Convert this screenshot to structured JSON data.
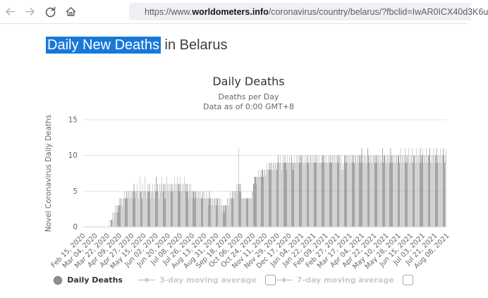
{
  "browser": {
    "url_prefix": "https://www.",
    "url_domain": "worldometers.info",
    "url_path": "/coronavirus/country/belarus/?fbclid=IwAR0ICX40d3K6u",
    "icons": {
      "back": "arrow-left",
      "forward": "arrow-right",
      "reload": "refresh-circle-arrow",
      "home": "house",
      "tracking_protection": "shield",
      "connection_security": "lock"
    }
  },
  "page": {
    "heading": {
      "highlighted": "Daily New Deaths",
      "rest": " in Belarus",
      "highlight_color": "#1778d9",
      "text_color": "#3d3d3d"
    }
  },
  "chart_data": {
    "type": "bar",
    "title": "Daily Deaths",
    "subtitle1": "Deaths per Day",
    "subtitle2": "Data as of 0:00 GMT+8",
    "ylabel": "Novel Coronavirus Daily Deaths",
    "xlabel": "",
    "ylim": [
      0,
      15
    ],
    "yticks": [
      0,
      5,
      10,
      15
    ],
    "grid": true,
    "bar_color": "#a4a4a4",
    "gridline_color": "#e6e6e6",
    "axis_line_color": "#d2d2d2",
    "start_date": "Feb 15, 2020",
    "end_date": "Aug 10, 2021",
    "x_tick_interval_days": 18,
    "x_tick_labels": [
      "Feb 15, 2020",
      "Mar 04, 2020",
      "Mar 22, 2020",
      "Apr 09, 2020",
      "Apr 27, 2020",
      "May 15, 2020",
      "Jun 02, 2020",
      "Jun 20, 2020",
      "Jul 08, 2020",
      "Jul 26, 2020",
      "Aug 13, 2020",
      "Aug 31, 2020",
      "Sep 18, 2020",
      "Oct 06, 2020",
      "Oct 24, 2020",
      "Nov 11, 2020",
      "Nov 29, 2020",
      "Dec 17, 2020",
      "Jan 04, 2021",
      "Jan 22, 2021",
      "Feb 09, 2021",
      "Feb 27, 2021",
      "Mar 17, 2021",
      "Apr 04, 2021",
      "Apr 22, 2021",
      "May 10, 2021",
      "May 28, 2021",
      "Jun 15, 2021",
      "Jul 03, 2021",
      "Jul 21, 2021",
      "Aug 08, 2021"
    ],
    "series": [
      {
        "name": "Daily Deaths",
        "values": [
          0,
          0,
          0,
          0,
          0,
          0,
          0,
          0,
          0,
          0,
          0,
          0,
          0,
          0,
          0,
          0,
          0,
          0,
          0,
          0,
          0,
          0,
          0,
          0,
          0,
          0,
          0,
          0,
          0,
          0,
          0,
          0,
          0,
          0,
          0,
          0,
          0,
          0,
          0,
          1,
          0,
          1,
          1,
          2,
          1,
          2,
          2,
          3,
          2,
          3,
          3,
          2,
          3,
          3,
          4,
          3,
          4,
          4,
          3,
          4,
          4,
          5,
          4,
          4,
          5,
          4,
          5,
          5,
          4,
          5,
          4,
          5,
          5,
          4,
          5,
          6,
          5,
          4,
          5,
          5,
          6,
          5,
          4,
          5,
          7,
          5,
          5,
          4,
          6,
          5,
          5,
          7,
          5,
          5,
          4,
          6,
          5,
          5,
          6,
          5,
          4,
          5,
          5,
          6,
          5,
          4,
          6,
          5,
          7,
          5,
          6,
          5,
          4,
          6,
          5,
          6,
          7,
          5,
          6,
          5,
          6,
          4,
          6,
          5,
          7,
          6,
          5,
          6,
          5,
          6,
          5,
          6,
          5,
          6,
          5,
          7,
          6,
          5,
          6,
          7,
          5,
          6,
          6,
          5,
          7,
          6,
          5,
          6,
          5,
          6,
          7,
          5,
          6,
          5,
          6,
          5,
          4,
          6,
          5,
          6,
          5,
          4,
          5,
          5,
          5,
          4,
          5,
          5,
          4,
          5,
          4,
          5,
          5,
          4,
          5,
          4,
          4,
          5,
          4,
          5,
          4,
          4,
          5,
          4,
          4,
          3,
          4,
          5,
          4,
          4,
          3,
          4,
          4,
          3,
          4,
          4,
          4,
          3,
          4,
          4,
          3,
          4,
          4,
          3,
          4,
          3,
          2,
          3,
          3,
          2,
          3,
          3,
          3,
          3,
          4,
          4,
          3,
          4,
          5,
          4,
          4,
          5,
          4,
          5,
          5,
          5,
          5,
          6,
          5,
          6,
          11,
          6,
          5,
          6,
          5,
          4,
          4,
          4,
          4,
          4,
          4,
          4,
          4,
          4,
          4,
          4,
          4,
          4,
          4,
          4,
          5,
          5,
          6,
          6,
          7,
          7,
          7,
          6,
          7,
          7,
          8,
          7,
          7,
          8,
          7,
          8,
          8,
          7,
          8,
          8,
          7,
          8,
          9,
          8,
          8,
          9,
          8,
          9,
          8,
          9,
          9,
          8,
          9,
          9,
          8,
          9,
          9,
          8,
          9,
          10,
          9,
          9,
          10,
          9,
          8,
          9,
          10,
          9,
          9,
          10,
          9,
          9,
          8,
          10,
          9,
          9,
          10,
          9,
          9,
          10,
          9,
          8,
          9,
          10,
          9,
          9,
          10,
          9,
          10,
          9,
          9,
          10,
          9,
          10,
          10,
          9,
          10,
          9,
          9,
          10,
          9,
          10,
          9,
          10,
          9,
          9,
          10,
          10,
          9,
          10,
          9,
          10,
          9,
          9,
          10,
          9,
          10,
          9,
          10,
          9,
          10,
          9,
          9,
          10,
          9,
          10,
          10,
          9,
          10,
          9,
          10,
          9,
          9,
          10,
          9,
          10,
          9,
          10,
          9,
          9,
          10,
          10,
          9,
          10,
          9,
          10,
          9,
          10,
          9,
          10,
          10,
          9,
          10,
          8,
          9,
          8,
          9,
          10,
          10,
          9,
          10,
          9,
          10,
          9,
          10,
          10,
          9,
          10,
          9,
          10,
          9,
          10,
          9,
          10,
          10,
          9,
          10,
          10,
          9,
          10,
          10,
          9,
          10,
          11,
          9,
          10,
          9,
          10,
          10,
          9,
          10,
          9,
          11,
          10,
          9,
          10,
          10,
          9,
          10,
          9,
          10,
          10,
          9,
          10,
          9,
          10,
          10,
          9,
          10,
          10,
          9,
          10,
          9,
          10,
          11,
          9,
          10,
          10,
          9,
          10,
          9,
          10,
          10,
          9,
          10,
          9,
          11,
          10,
          9,
          10,
          10,
          9,
          10,
          9,
          10,
          10,
          9,
          10,
          10,
          9,
          10,
          11,
          9,
          10,
          10,
          9,
          10,
          11,
          9,
          10,
          9,
          10,
          10,
          11,
          9,
          10,
          9,
          10,
          11,
          9,
          10,
          10,
          9,
          10,
          11,
          9,
          10,
          10,
          9,
          10,
          11,
          9,
          10,
          10,
          11,
          9,
          10,
          10,
          9,
          11,
          10,
          9,
          10,
          10,
          11,
          9,
          10,
          9,
          10,
          11,
          10,
          9,
          10,
          10,
          11,
          9,
          10,
          10,
          9,
          10,
          11,
          9,
          10,
          10,
          11,
          10,
          9,
          10,
          11
        ]
      }
    ]
  },
  "legend": {
    "items": [
      {
        "label": "Daily Deaths",
        "marker": "filled-circle",
        "color": "#909090",
        "active": true,
        "has_checkbox": false
      },
      {
        "label": "3-day moving average",
        "marker": "line-diamond",
        "color": "#cccccc",
        "active": false,
        "has_checkbox": true,
        "checked": false
      },
      {
        "label": "7-day moving average",
        "marker": "line-diamond",
        "color": "#cccccc",
        "active": false,
        "has_checkbox": true,
        "checked": false
      }
    ]
  }
}
